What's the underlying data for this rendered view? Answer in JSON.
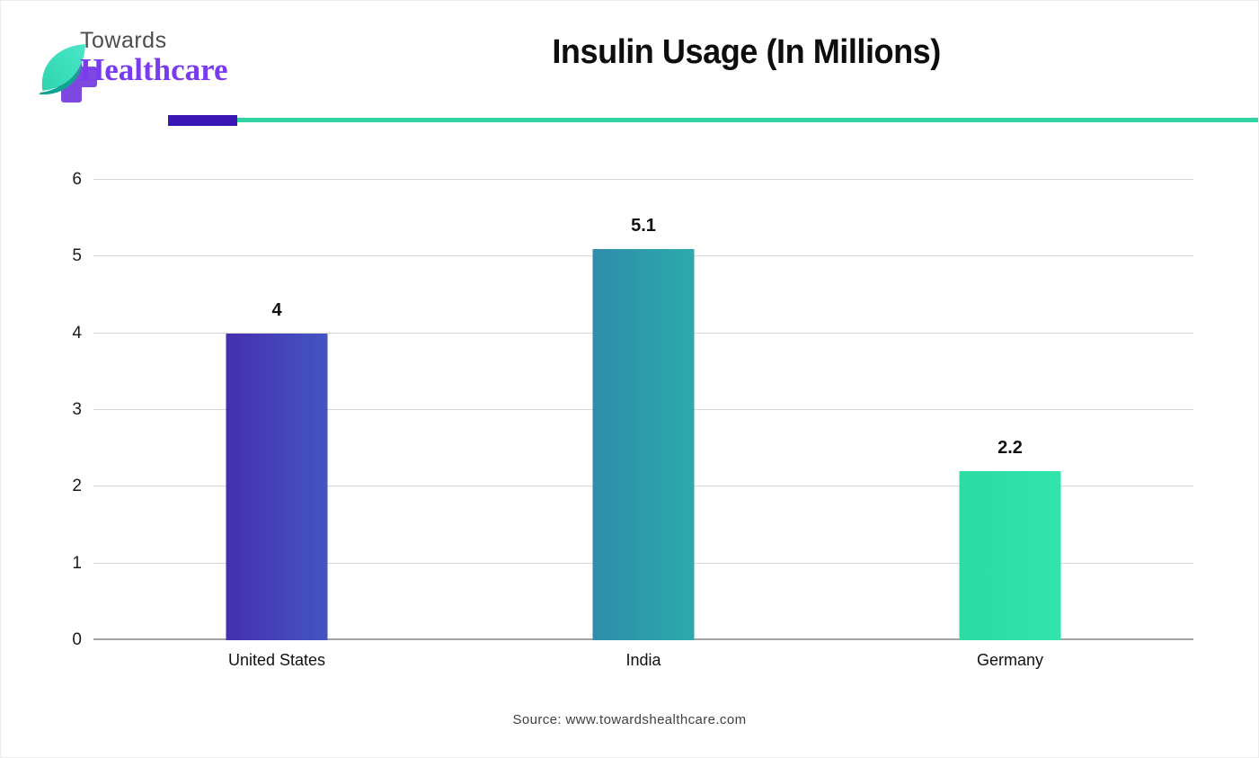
{
  "page": {
    "title": "Insulin Usage (In Millions)",
    "source": "Source: www.towardshealthcare.com"
  },
  "logo": {
    "line1": "Towards",
    "line2": "Healthcare",
    "colors": {
      "cross": "#7e49e0",
      "leaf_light": "#49e8c8",
      "leaf_dark": "#0fa391",
      "towards_text": "#4d4d4d",
      "healthcare_text": "#7a3bf0"
    }
  },
  "divider": {
    "accent_color": "#3a16b5",
    "line_color": "#2fd3a4"
  },
  "chart_data": {
    "type": "bar",
    "title": "Insulin Usage (In Millions)",
    "categories": [
      "United States",
      "India",
      "Germany"
    ],
    "values": [
      4,
      5.1,
      2.2
    ],
    "value_labels": [
      "4",
      "5.1",
      "2.2"
    ],
    "ylim": [
      0,
      6
    ],
    "yticks": [
      0,
      1,
      2,
      3,
      4,
      5,
      6
    ],
    "grid": true,
    "legend": false,
    "bar_gradients": [
      [
        "#452fb0",
        "#4455c2"
      ],
      [
        "#2f8cab",
        "#2caaab"
      ],
      [
        "#2bdca3",
        "#30e4ac"
      ]
    ],
    "gridline_color": "#d6d6d6",
    "baseline_color": "#a3a3a3"
  }
}
